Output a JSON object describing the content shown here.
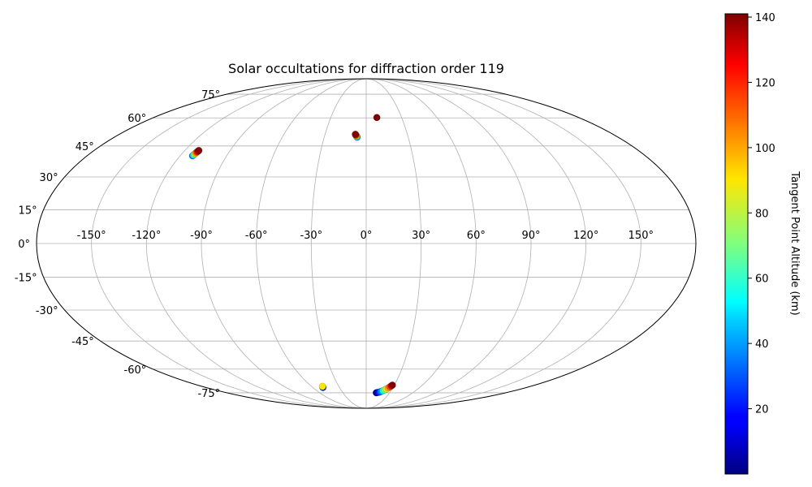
{
  "chart_data": {
    "type": "scatter",
    "projection": "mollweide",
    "title": "Solar occultations for diffraction order 119",
    "grid": true,
    "longitude_ticks": [
      "-150°",
      "-120°",
      "-90°",
      "-60°",
      "-30°",
      "0°",
      "30°",
      "60°",
      "90°",
      "120°",
      "150°"
    ],
    "latitude_ticks": [
      "-75°",
      "-60°",
      "-45°",
      "-30°",
      "-15°",
      "0°",
      "15°",
      "30°",
      "45°",
      "60°",
      "75°"
    ],
    "colorbar": {
      "label": "Tangent Point Altitude (km)",
      "colormap": "jet",
      "range": [
        0,
        141
      ],
      "ticks": [
        "20",
        "40",
        "60",
        "80",
        "100",
        "120",
        "140"
      ],
      "tick_values": [
        20,
        40,
        60,
        80,
        100,
        120,
        140
      ]
    },
    "series": [
      {
        "lon_range": [
          -112,
          -110
        ],
        "lat_range": [
          40,
          43
        ],
        "altitude_range": [
          35,
          141
        ],
        "points_lonlat_alt": [
          [
            -112.0,
            40.1,
            35
          ],
          [
            -111.8,
            40.5,
            55
          ],
          [
            -111.6,
            40.9,
            75
          ],
          [
            -111.4,
            41.3,
            95
          ],
          [
            -111.2,
            41.7,
            110
          ],
          [
            -111.0,
            42.1,
            125
          ],
          [
            -110.8,
            42.5,
            135
          ],
          [
            -110.7,
            42.7,
            140
          ]
        ]
      },
      {
        "lon_range": [
          -8,
          -6
        ],
        "lat_range": [
          49,
          51
        ],
        "altitude_range": [
          35,
          141
        ],
        "points_lonlat_alt": [
          [
            -6.5,
            49.5,
            35
          ],
          [
            -6.8,
            49.8,
            55
          ],
          [
            -7.0,
            50.1,
            80
          ],
          [
            -7.3,
            50.4,
            105
          ],
          [
            -7.6,
            50.7,
            125
          ],
          [
            -7.9,
            51.0,
            140
          ]
        ]
      },
      {
        "lon_range": [
          9,
          9
        ],
        "lat_range": [
          60,
          60
        ],
        "altitude_range": [
          141,
          141
        ],
        "points_lonlat_alt": [
          [
            9.0,
            60.2,
            141
          ]
        ]
      },
      {
        "lon_range": [
          -49,
          -48
        ],
        "lat_range": [
          -71,
          -70
        ],
        "altitude_range": [
          2,
          90
        ],
        "points_lonlat_alt": [
          [
            -48.6,
            -71.3,
            2
          ],
          [
            -48.3,
            -71.0,
            30
          ],
          [
            -48.0,
            -70.6,
            90
          ]
        ]
      },
      {
        "lon_range": [
          13,
          28
        ],
        "lat_range": [
          -75,
          -70
        ],
        "altitude_range": [
          2,
          141
        ],
        "points_lonlat_alt": [
          [
            13.0,
            -75.0,
            2
          ],
          [
            14.5,
            -74.8,
            10
          ],
          [
            16.0,
            -74.6,
            20
          ],
          [
            17.5,
            -74.3,
            30
          ],
          [
            19.0,
            -73.9,
            40
          ],
          [
            20.5,
            -73.5,
            55
          ],
          [
            22.0,
            -72.9,
            70
          ],
          [
            23.5,
            -72.3,
            85
          ],
          [
            25.0,
            -71.6,
            100
          ],
          [
            26.3,
            -70.9,
            115
          ],
          [
            27.3,
            -70.2,
            130
          ],
          [
            28.0,
            -69.8,
            141
          ]
        ]
      }
    ]
  }
}
